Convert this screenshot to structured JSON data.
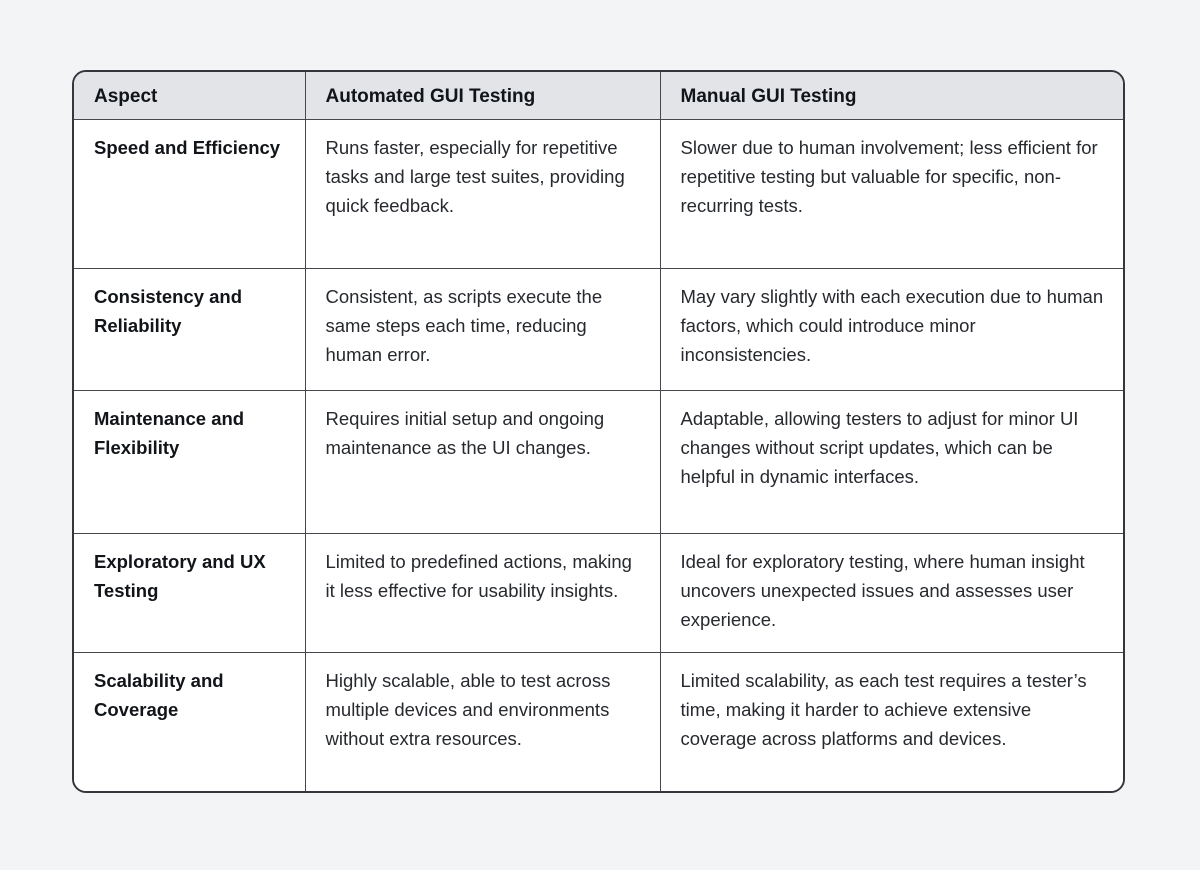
{
  "table": {
    "headers": [
      "Aspect",
      "Automated GUI Testing",
      "Manual GUI Testing"
    ],
    "rows": [
      {
        "aspect": "Speed and Efficiency",
        "automated": "Runs faster, especially for repetitive tasks and large test suites, providing quick feedback.",
        "manual": "Slower due to human involvement; less efficient for repetitive testing but valuable for specific, non-recurring tests."
      },
      {
        "aspect": "Consistency and Reliability",
        "automated": "Consistent, as scripts execute the same steps each time, reducing human error.",
        "manual": "May vary slightly with each execution due to human factors, which could introduce minor inconsistencies."
      },
      {
        "aspect": "Maintenance and Flexibility",
        "automated": "Requires initial setup and ongoing maintenance as the UI changes.",
        "manual": "Adaptable, allowing testers to adjust for minor UI changes without script updates, which can be helpful in dynamic interfaces."
      },
      {
        "aspect": "Exploratory and UX Testing",
        "automated": "Limited to predefined actions, making it less effective for usability insights.",
        "manual": "Ideal for exploratory testing, where human insight uncovers unexpected issues and assesses user experience."
      },
      {
        "aspect": "Scalability and Coverage",
        "automated": "Highly scalable, able to test across multiple devices and environments without extra resources.",
        "manual": "Limited scalability, as each test requires a tester’s time, making it harder to achieve extensive coverage across platforms and devices."
      }
    ]
  },
  "colors": {
    "page_background": "#f2f4f6",
    "header_background": "#e2e4e7",
    "cell_background": "#ffffff",
    "border": "#45484d",
    "heading_text": "#111418",
    "body_text": "#26292e"
  }
}
